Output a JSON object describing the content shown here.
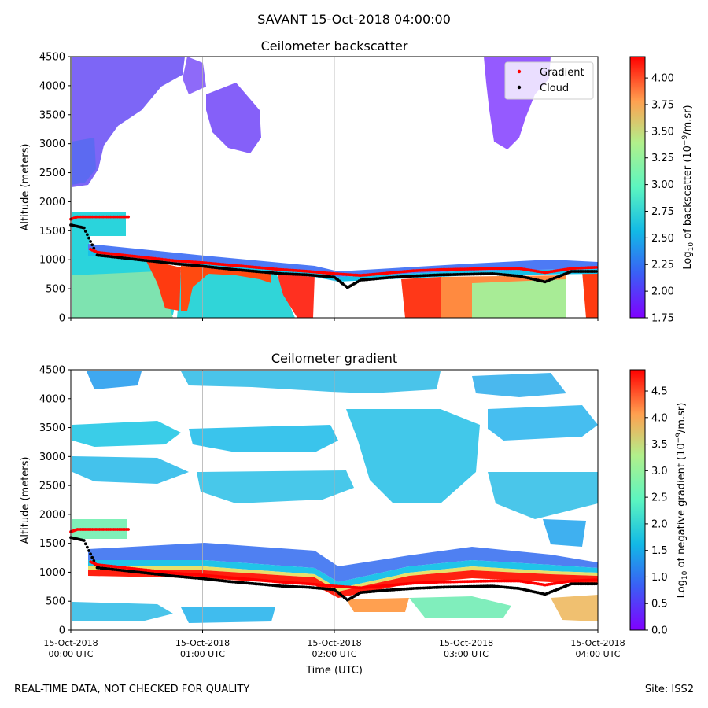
{
  "suptitle": "SAVANT 15-Oct-2018 04:00:00",
  "footer": {
    "left_note": "REAL-TIME DATA, NOT CHECKED FOR QUALITY",
    "site": "Site: ISS2"
  },
  "colors": {
    "gradient_marker": "#ff0000",
    "cloud_marker": "#000000",
    "gridline": "#b0b0b0"
  },
  "chart_data": [
    {
      "type": "heatmap",
      "title": "Ceilometer backscatter",
      "xlabel": "",
      "ylabel": "Altitude (meters)",
      "ylim": [
        0,
        4500
      ],
      "y_ticks": [
        0,
        500,
        1000,
        1500,
        2000,
        2500,
        3000,
        3500,
        4000,
        4500
      ],
      "x_range_hours": [
        0,
        4
      ],
      "x_tick_hours": [
        0,
        1,
        2,
        3,
        4
      ],
      "x_grid": true,
      "legend": {
        "placement": "top-right",
        "entries": [
          {
            "label": "Gradient",
            "color": "#ff0000"
          },
          {
            "label": "Cloud",
            "color": "#000000"
          }
        ]
      },
      "colorbar": {
        "label_main": "Log",
        "label_sub": "10",
        "label_rest": " of backscatter (10",
        "label_sup": "−9",
        "label_end": "/m.sr)",
        "range": [
          1.75,
          4.2
        ],
        "ticks": [
          "1.75",
          "2.00",
          "2.25",
          "2.50",
          "2.75",
          "3.00",
          "3.25",
          "3.50",
          "3.75",
          "4.00"
        ]
      },
      "series": [
        {
          "name": "Cloud",
          "x_hours": [
            0.0,
            0.1,
            0.2,
            0.4,
            0.6,
            0.8,
            1.0,
            1.2,
            1.4,
            1.6,
            1.8,
            2.0,
            2.1,
            2.2,
            2.4,
            2.6,
            2.8,
            3.0,
            3.2,
            3.4,
            3.6,
            3.8,
            4.0
          ],
          "y": [
            1600,
            1550,
            1080,
            1030,
            980,
            930,
            890,
            840,
            800,
            760,
            740,
            700,
            520,
            650,
            690,
            720,
            740,
            750,
            760,
            720,
            620,
            800,
            800
          ]
        },
        {
          "name": "Gradient",
          "x_hours": [
            0.0,
            0.05,
            0.15,
            0.3,
            0.45,
            0.15,
            0.2,
            0.4,
            0.6,
            0.8,
            1.0,
            1.2,
            1.4,
            1.6,
            1.8,
            2.0,
            2.2,
            2.4,
            2.6,
            2.8,
            3.0,
            3.2,
            3.4,
            3.6,
            3.8,
            4.0
          ],
          "y": [
            1700,
            1740,
            1740,
            1740,
            1740,
            1180,
            1130,
            1080,
            1030,
            980,
            950,
            910,
            870,
            830,
            800,
            760,
            730,
            770,
            810,
            830,
            840,
            850,
            850,
            780,
            850,
            870
          ]
        }
      ]
    },
    {
      "type": "heatmap",
      "title": "Ceilometer gradient",
      "xlabel": "Time (UTC)",
      "ylabel": "Altitude (meters)",
      "ylim": [
        0,
        4500
      ],
      "y_ticks": [
        0,
        500,
        1000,
        1500,
        2000,
        2500,
        3000,
        3500,
        4000,
        4500
      ],
      "x_range_hours": [
        0,
        4
      ],
      "x_tick_hours": [
        0,
        1,
        2,
        3,
        4
      ],
      "x_tick_labels": [
        [
          "15-Oct-2018",
          "00:00 UTC"
        ],
        [
          "15-Oct-2018",
          "01:00 UTC"
        ],
        [
          "15-Oct-2018",
          "02:00 UTC"
        ],
        [
          "15-Oct-2018",
          "03:00 UTC"
        ],
        [
          "15-Oct-2018",
          "04:00 UTC"
        ]
      ],
      "x_grid": true,
      "colorbar": {
        "label_main": "Log",
        "label_sub": "10",
        "label_rest": " of negative gradient (10",
        "label_sup": "−9",
        "label_end": "/m.sr)",
        "range": [
          0.0,
          4.9
        ],
        "ticks": [
          "0.0",
          "0.5",
          "1.0",
          "1.5",
          "2.0",
          "2.5",
          "3.0",
          "3.5",
          "4.0",
          "4.5"
        ]
      },
      "series": [
        {
          "name": "Cloud",
          "x_hours": [
            0.0,
            0.1,
            0.2,
            0.4,
            0.6,
            0.8,
            1.0,
            1.2,
            1.4,
            1.6,
            1.8,
            2.0,
            2.1,
            2.2,
            2.4,
            2.6,
            2.8,
            3.0,
            3.2,
            3.4,
            3.6,
            3.8,
            4.0
          ],
          "y": [
            1600,
            1550,
            1080,
            1030,
            980,
            930,
            890,
            840,
            800,
            760,
            740,
            700,
            520,
            650,
            690,
            720,
            740,
            750,
            760,
            720,
            620,
            800,
            800
          ]
        },
        {
          "name": "Gradient",
          "x_hours": [
            0.0,
            0.05,
            0.15,
            0.3,
            0.45,
            0.15,
            0.2,
            0.4,
            0.6,
            0.8,
            1.0,
            1.2,
            1.4,
            1.6,
            1.8,
            2.0,
            2.2,
            2.4,
            2.6,
            2.8,
            3.0,
            3.2,
            3.4,
            3.6,
            3.8,
            4.0
          ],
          "y": [
            1700,
            1740,
            1740,
            1740,
            1740,
            1180,
            1130,
            1080,
            1030,
            980,
            950,
            910,
            870,
            830,
            800,
            760,
            730,
            770,
            810,
            830,
            840,
            850,
            850,
            780,
            850,
            870
          ]
        }
      ]
    }
  ]
}
